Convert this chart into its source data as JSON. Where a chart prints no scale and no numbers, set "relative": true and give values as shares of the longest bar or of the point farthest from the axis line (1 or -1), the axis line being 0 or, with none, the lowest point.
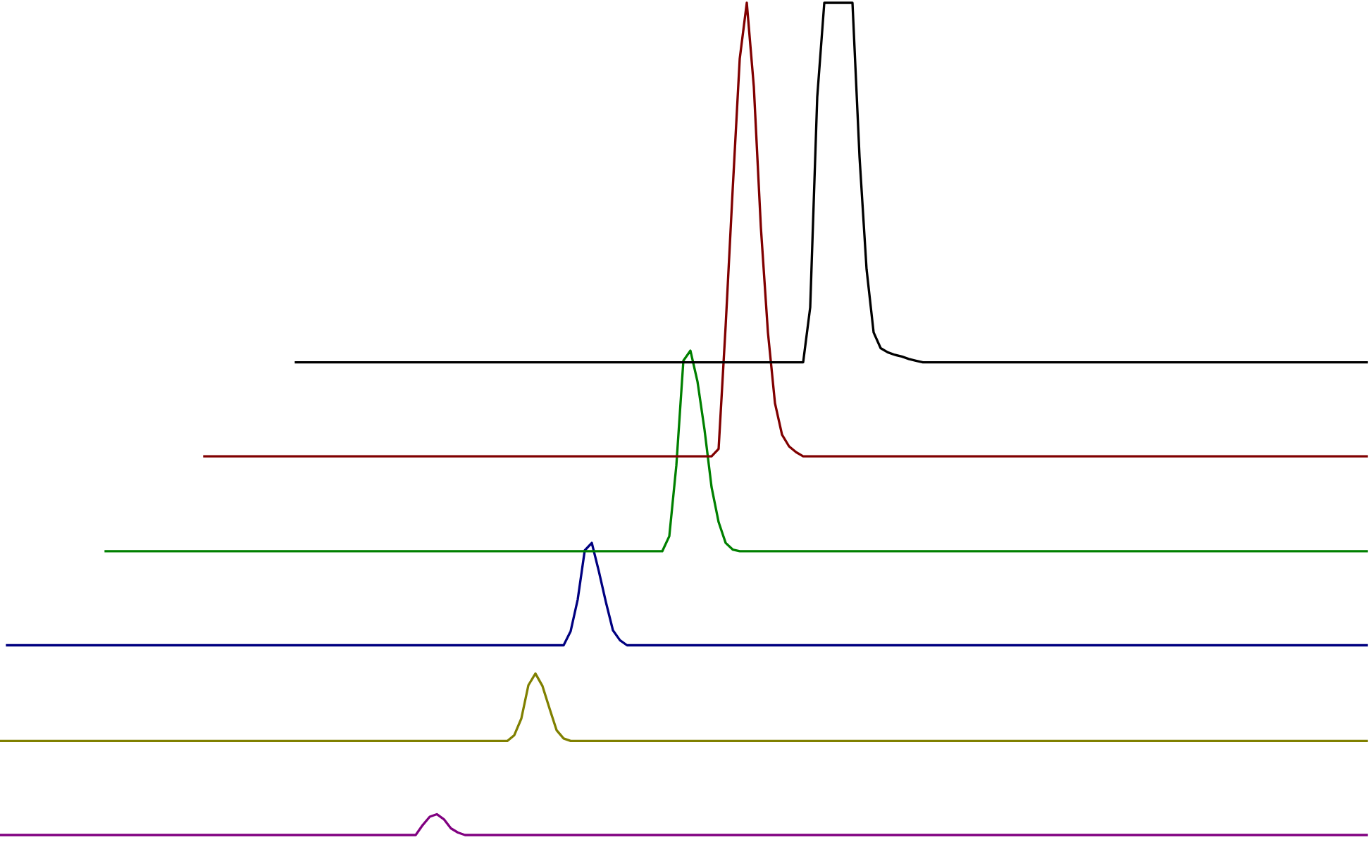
{
  "chart_data": {
    "type": "line",
    "relative": true,
    "grid": false,
    "legend": false,
    "marker": "none",
    "line_style": "solid",
    "categories": [
      null,
      null,
      null,
      null,
      null,
      null,
      null,
      null,
      null,
      null,
      null,
      null,
      null,
      null,
      null,
      null,
      null,
      null,
      null,
      null,
      null,
      null,
      null,
      null,
      null,
      null,
      null,
      null,
      null,
      null,
      null,
      null,
      null,
      null,
      null,
      null,
      null,
      null,
      null,
      null,
      null,
      null,
      null,
      null,
      null,
      null,
      null,
      null,
      null,
      null,
      null,
      null,
      null,
      null,
      null,
      null,
      null,
      null,
      null,
      null,
      null,
      null,
      null,
      null,
      null,
      null,
      null,
      null,
      null,
      null,
      null,
      null,
      null,
      null,
      null,
      null,
      null,
      null,
      null,
      null,
      null,
      null,
      null,
      null,
      null,
      null,
      null,
      null,
      null,
      null,
      null,
      null,
      null,
      null,
      null,
      null,
      null,
      null,
      null,
      null,
      null,
      null,
      null,
      null,
      null,
      null,
      null,
      null,
      null,
      null,
      null,
      null,
      null,
      null,
      null,
      null,
      null,
      null,
      null,
      null,
      null,
      null,
      null,
      null,
      null,
      null,
      null,
      null,
      null,
      null,
      null,
      null,
      null,
      null,
      null,
      null,
      null,
      null,
      null,
      null,
      null,
      null,
      null,
      null,
      null,
      null,
      null,
      null,
      null,
      null,
      null,
      null,
      null,
      null,
      null,
      null,
      null,
      null,
      null,
      null,
      null,
      null,
      null,
      null,
      null,
      null,
      null,
      null,
      null,
      null,
      null,
      null,
      null,
      null,
      null,
      null,
      null,
      null,
      null,
      null,
      null,
      null,
      null,
      null,
      null,
      null,
      null,
      null,
      null,
      null,
      null,
      null,
      null,
      null,
      null
    ],
    "series": [
      {
        "color": "#800080",
        "values": [
          0,
          0,
          0,
          0,
          0,
          0,
          0,
          0,
          0,
          0,
          0,
          0,
          0,
          0,
          0,
          0,
          0,
          0,
          0,
          0,
          0,
          0,
          0,
          0,
          0,
          0,
          0,
          0,
          0,
          0,
          0,
          0,
          0,
          0,
          0,
          0,
          0,
          0,
          0,
          0,
          0,
          0,
          0,
          0,
          0,
          0,
          0,
          0,
          0,
          0,
          0,
          0,
          0,
          0,
          0,
          0,
          0,
          0,
          0,
          0,
          0.012,
          0.022,
          0.025,
          0.019,
          0.008,
          0.003,
          0,
          0,
          0,
          0,
          0,
          0,
          0,
          0,
          0,
          0,
          0,
          0,
          0,
          0,
          0,
          0,
          0,
          0,
          0,
          0,
          0,
          0,
          0,
          0,
          0,
          0,
          0,
          0,
          0,
          0,
          0,
          0,
          0,
          0,
          0,
          0,
          0,
          0,
          0,
          0,
          0,
          0,
          0,
          0,
          0,
          0,
          0,
          0,
          0,
          0,
          0,
          0,
          0,
          0,
          0,
          0,
          0,
          0,
          0,
          0,
          0,
          0,
          0,
          0,
          0,
          0,
          0,
          0,
          0,
          0,
          0,
          0,
          0,
          0,
          0,
          0,
          0,
          0,
          0,
          0,
          0,
          0,
          0,
          0,
          0,
          0,
          0,
          0,
          0,
          0,
          0,
          0,
          0,
          0,
          0,
          0,
          0,
          0,
          0,
          0,
          0,
          0,
          0,
          0,
          0,
          0,
          0,
          0,
          0,
          0,
          0,
          0,
          0,
          0,
          0,
          0,
          0,
          0,
          0,
          0,
          0,
          0,
          0,
          0,
          0,
          0,
          0,
          0,
          0
        ]
      },
      {
        "color": "#808000",
        "values": [
          0.113,
          0.113,
          0.113,
          0.113,
          0.113,
          0.113,
          0.113,
          0.113,
          0.113,
          0.113,
          0.113,
          0.113,
          0.113,
          0.113,
          0.113,
          0.113,
          0.113,
          0.113,
          0.113,
          0.113,
          0.113,
          0.113,
          0.113,
          0.113,
          0.113,
          0.113,
          0.113,
          0.113,
          0.113,
          0.113,
          0.113,
          0.113,
          0.113,
          0.113,
          0.113,
          0.113,
          0.113,
          0.113,
          0.113,
          0.113,
          0.113,
          0.113,
          0.113,
          0.113,
          0.113,
          0.113,
          0.113,
          0.113,
          0.113,
          0.113,
          0.113,
          0.113,
          0.113,
          0.113,
          0.113,
          0.113,
          0.113,
          0.113,
          0.113,
          0.113,
          0.113,
          0.113,
          0.113,
          0.113,
          0.113,
          0.113,
          0.113,
          0.113,
          0.113,
          0.113,
          0.113,
          0.113,
          0.113,
          0.12,
          0.14,
          0.18,
          0.194,
          0.179,
          0.152,
          0.126,
          0.116,
          0.113,
          0.113,
          0.113,
          0.113,
          0.113,
          0.113,
          0.113,
          0.113,
          0.113,
          0.113,
          0.113,
          0.113,
          0.113,
          0.113,
          0.113,
          0.113,
          0.113,
          0.113,
          0.113,
          0.113,
          0.113,
          0.113,
          0.113,
          0.113,
          0.113,
          0.113,
          0.113,
          0.113,
          0.113,
          0.113,
          0.113,
          0.113,
          0.113,
          0.113,
          0.113,
          0.113,
          0.113,
          0.113,
          0.113,
          0.113,
          0.113,
          0.113,
          0.113,
          0.113,
          0.113,
          0.113,
          0.113,
          0.113,
          0.113,
          0.113,
          0.113,
          0.113,
          0.113,
          0.113,
          0.113,
          0.113,
          0.113,
          0.113,
          0.113,
          0.113,
          0.113,
          0.113,
          0.113,
          0.113,
          0.113,
          0.113,
          0.113,
          0.113,
          0.113,
          0.113,
          0.113,
          0.113,
          0.113,
          0.113,
          0.113,
          0.113,
          0.113,
          0.113,
          0.113,
          0.113,
          0.113,
          0.113,
          0.113,
          0.113,
          0.113,
          0.113,
          0.113,
          0.113,
          0.113,
          0.113,
          0.113,
          0.113,
          0.113,
          0.113,
          0.113,
          0.113,
          0.113,
          0.113,
          0.113,
          0.113,
          0.113,
          0.113,
          0.113,
          0.113,
          0.113,
          0.113,
          0.113,
          0.113,
          0.113,
          0.113,
          0.113,
          0.113,
          0.113,
          0.113
        ]
      },
      {
        "color": "#000080",
        "values": [
          null,
          0.228,
          0.228,
          0.228,
          0.228,
          0.228,
          0.228,
          0.228,
          0.228,
          0.228,
          0.228,
          0.228,
          0.228,
          0.228,
          0.228,
          0.228,
          0.228,
          0.228,
          0.228,
          0.228,
          0.228,
          0.228,
          0.228,
          0.228,
          0.228,
          0.228,
          0.228,
          0.228,
          0.228,
          0.228,
          0.228,
          0.228,
          0.228,
          0.228,
          0.228,
          0.228,
          0.228,
          0.228,
          0.228,
          0.228,
          0.228,
          0.228,
          0.228,
          0.228,
          0.228,
          0.228,
          0.228,
          0.228,
          0.228,
          0.228,
          0.228,
          0.228,
          0.228,
          0.228,
          0.228,
          0.228,
          0.228,
          0.228,
          0.228,
          0.228,
          0.228,
          0.228,
          0.228,
          0.228,
          0.228,
          0.228,
          0.228,
          0.228,
          0.228,
          0.228,
          0.228,
          0.228,
          0.228,
          0.228,
          0.228,
          0.228,
          0.228,
          0.228,
          0.228,
          0.228,
          0.228,
          0.245,
          0.283,
          0.342,
          0.351,
          0.317,
          0.28,
          0.246,
          0.234,
          0.228,
          0.228,
          0.228,
          0.228,
          0.228,
          0.228,
          0.228,
          0.228,
          0.228,
          0.228,
          0.228,
          0.228,
          0.228,
          0.228,
          0.228,
          0.228,
          0.228,
          0.228,
          0.228,
          0.228,
          0.228,
          0.228,
          0.228,
          0.228,
          0.228,
          0.228,
          0.228,
          0.228,
          0.228,
          0.228,
          0.228,
          0.228,
          0.228,
          0.228,
          0.228,
          0.228,
          0.228,
          0.228,
          0.228,
          0.228,
          0.228,
          0.228,
          0.228,
          0.228,
          0.228,
          0.228,
          0.228,
          0.228,
          0.228,
          0.228,
          0.228,
          0.228,
          0.228,
          0.228,
          0.228,
          0.228,
          0.228,
          0.228,
          0.228,
          0.228,
          0.228,
          0.228,
          0.228,
          0.228,
          0.228,
          0.228,
          0.228,
          0.228,
          0.228,
          0.228,
          0.228,
          0.228,
          0.228,
          0.228,
          0.228,
          0.228,
          0.228,
          0.228,
          0.228,
          0.228,
          0.228,
          0.228,
          0.228,
          0.228,
          0.228,
          0.228,
          0.228,
          0.228,
          0.228,
          0.228,
          0.228,
          0.228,
          0.228,
          0.228,
          0.228,
          0.228,
          0.228,
          0.228,
          0.228,
          0.228,
          0.228,
          0.228,
          0.228,
          0.228,
          0.228,
          0.228
        ]
      },
      {
        "color": "#008000",
        "values": [
          null,
          null,
          null,
          null,
          null,
          null,
          null,
          null,
          null,
          null,
          null,
          null,
          null,
          null,
          null,
          0.341,
          0.341,
          0.341,
          0.341,
          0.341,
          0.341,
          0.341,
          0.341,
          0.341,
          0.341,
          0.341,
          0.341,
          0.341,
          0.341,
          0.341,
          0.341,
          0.341,
          0.341,
          0.341,
          0.341,
          0.341,
          0.341,
          0.341,
          0.341,
          0.341,
          0.341,
          0.341,
          0.341,
          0.341,
          0.341,
          0.341,
          0.341,
          0.341,
          0.341,
          0.341,
          0.341,
          0.341,
          0.341,
          0.341,
          0.341,
          0.341,
          0.341,
          0.341,
          0.341,
          0.341,
          0.341,
          0.341,
          0.341,
          0.341,
          0.341,
          0.341,
          0.341,
          0.341,
          0.341,
          0.341,
          0.341,
          0.341,
          0.341,
          0.341,
          0.341,
          0.341,
          0.341,
          0.341,
          0.341,
          0.341,
          0.341,
          0.341,
          0.341,
          0.341,
          0.341,
          0.341,
          0.341,
          0.341,
          0.341,
          0.341,
          0.341,
          0.341,
          0.341,
          0.341,
          0.341,
          0.359,
          0.444,
          0.57,
          0.582,
          0.545,
          0.487,
          0.418,
          0.376,
          0.351,
          0.343,
          0.341,
          0.341,
          0.341,
          0.341,
          0.341,
          0.341,
          0.341,
          0.341,
          0.341,
          0.341,
          0.341,
          0.341,
          0.341,
          0.341,
          0.341,
          0.341,
          0.341,
          0.341,
          0.341,
          0.341,
          0.341,
          0.341,
          0.341,
          0.341,
          0.341,
          0.341,
          0.341,
          0.341,
          0.341,
          0.341,
          0.341,
          0.341,
          0.341,
          0.341,
          0.341,
          0.341,
          0.341,
          0.341,
          0.341,
          0.341,
          0.341,
          0.341,
          0.341,
          0.341,
          0.341,
          0.341,
          0.341,
          0.341,
          0.341,
          0.341,
          0.341,
          0.341,
          0.341,
          0.341,
          0.341,
          0.341,
          0.341,
          0.341,
          0.341,
          0.341,
          0.341,
          0.341,
          0.341,
          0.341,
          0.341,
          0.341,
          0.341,
          0.341,
          0.341,
          0.341,
          0.341,
          0.341,
          0.341,
          0.341,
          0.341,
          0.341,
          0.341,
          0.341,
          0.341,
          0.341,
          0.341,
          0.341,
          0.341,
          0.341,
          0.341,
          0.341,
          0.341,
          0.341,
          0.341,
          0.341
        ]
      },
      {
        "color": "#800000",
        "values": [
          null,
          null,
          null,
          null,
          null,
          null,
          null,
          null,
          null,
          null,
          null,
          null,
          null,
          null,
          null,
          null,
          null,
          null,
          null,
          null,
          null,
          null,
          null,
          null,
          null,
          null,
          null,
          null,
          null,
          0.455,
          0.455,
          0.455,
          0.455,
          0.455,
          0.455,
          0.455,
          0.455,
          0.455,
          0.455,
          0.455,
          0.455,
          0.455,
          0.455,
          0.455,
          0.455,
          0.455,
          0.455,
          0.455,
          0.455,
          0.455,
          0.455,
          0.455,
          0.455,
          0.455,
          0.455,
          0.455,
          0.455,
          0.455,
          0.455,
          0.455,
          0.455,
          0.455,
          0.455,
          0.455,
          0.455,
          0.455,
          0.455,
          0.455,
          0.455,
          0.455,
          0.455,
          0.455,
          0.455,
          0.455,
          0.455,
          0.455,
          0.455,
          0.455,
          0.455,
          0.455,
          0.455,
          0.455,
          0.455,
          0.455,
          0.455,
          0.455,
          0.455,
          0.455,
          0.455,
          0.455,
          0.455,
          0.455,
          0.455,
          0.455,
          0.455,
          0.455,
          0.455,
          0.455,
          0.455,
          0.455,
          0.455,
          0.455,
          0.464,
          0.612,
          0.776,
          0.933,
          1,
          0.899,
          0.73,
          0.604,
          0.519,
          0.481,
          0.467,
          0.46,
          0.455,
          0.455,
          0.455,
          0.455,
          0.455,
          0.455,
          0.455,
          0.455,
          0.455,
          0.455,
          0.455,
          0.455,
          0.455,
          0.455,
          0.455,
          0.455,
          0.455,
          0.455,
          0.455,
          0.455,
          0.455,
          0.455,
          0.455,
          0.455,
          0.455,
          0.455,
          0.455,
          0.455,
          0.455,
          0.455,
          0.455,
          0.455,
          0.455,
          0.455,
          0.455,
          0.455,
          0.455,
          0.455,
          0.455,
          0.455,
          0.455,
          0.455,
          0.455,
          0.455,
          0.455,
          0.455,
          0.455,
          0.455,
          0.455,
          0.455,
          0.455,
          0.455,
          0.455,
          0.455,
          0.455,
          0.455,
          0.455,
          0.455,
          0.455,
          0.455,
          0.455,
          0.455,
          0.455,
          0.455,
          0.455,
          0.455,
          0.455,
          0.455,
          0.455,
          0.455,
          0.455,
          0.455,
          0.455,
          0.455,
          0.455,
          0.455,
          0.455,
          0.455,
          0.455,
          0.455,
          0.455
        ]
      },
      {
        "color": "#000000",
        "values": [
          null,
          null,
          null,
          null,
          null,
          null,
          null,
          null,
          null,
          null,
          null,
          null,
          null,
          null,
          null,
          null,
          null,
          null,
          null,
          null,
          null,
          null,
          null,
          null,
          null,
          null,
          null,
          null,
          null,
          null,
          null,
          null,
          null,
          null,
          null,
          null,
          null,
          null,
          null,
          null,
          null,
          null,
          0.568,
          0.568,
          0.568,
          0.568,
          0.568,
          0.568,
          0.568,
          0.568,
          0.568,
          0.568,
          0.568,
          0.568,
          0.568,
          0.568,
          0.568,
          0.568,
          0.568,
          0.568,
          0.568,
          0.568,
          0.568,
          0.568,
          0.568,
          0.568,
          0.568,
          0.568,
          0.568,
          0.568,
          0.568,
          0.568,
          0.568,
          0.568,
          0.568,
          0.568,
          0.568,
          0.568,
          0.568,
          0.568,
          0.568,
          0.568,
          0.568,
          0.568,
          0.568,
          0.568,
          0.568,
          0.568,
          0.568,
          0.568,
          0.568,
          0.568,
          0.568,
          0.568,
          0.568,
          0.568,
          0.568,
          0.568,
          0.568,
          0.568,
          0.568,
          0.568,
          0.568,
          0.568,
          0.568,
          0.568,
          0.568,
          0.568,
          0.568,
          0.568,
          0.568,
          0.568,
          0.568,
          0.568,
          0.568,
          0.634,
          0.887,
          1,
          1,
          1,
          1,
          1,
          0.815,
          0.68,
          0.604,
          0.585,
          0.58,
          0.577,
          0.575,
          0.572,
          0.57,
          0.568,
          0.568,
          0.568,
          0.568,
          0.568,
          0.568,
          0.568,
          0.568,
          0.568,
          0.568,
          0.568,
          0.568,
          0.568,
          0.568,
          0.568,
          0.568,
          0.568,
          0.568,
          0.568,
          0.568,
          0.568,
          0.568,
          0.568,
          0.568,
          0.568,
          0.568,
          0.568,
          0.568,
          0.568,
          0.568,
          0.568,
          0.568,
          0.568,
          0.568,
          0.568,
          0.568,
          0.568,
          0.568,
          0.568,
          0.568,
          0.568,
          0.568,
          0.568,
          0.568,
          0.568,
          0.568,
          0.568,
          0.568,
          0.568,
          0.568,
          0.568,
          0.568,
          0.568,
          0.568,
          0.568,
          0.568,
          0.568,
          0.568,
          0.568,
          0.568,
          0.568,
          0.568,
          0.568,
          0.568
        ]
      }
    ]
  }
}
